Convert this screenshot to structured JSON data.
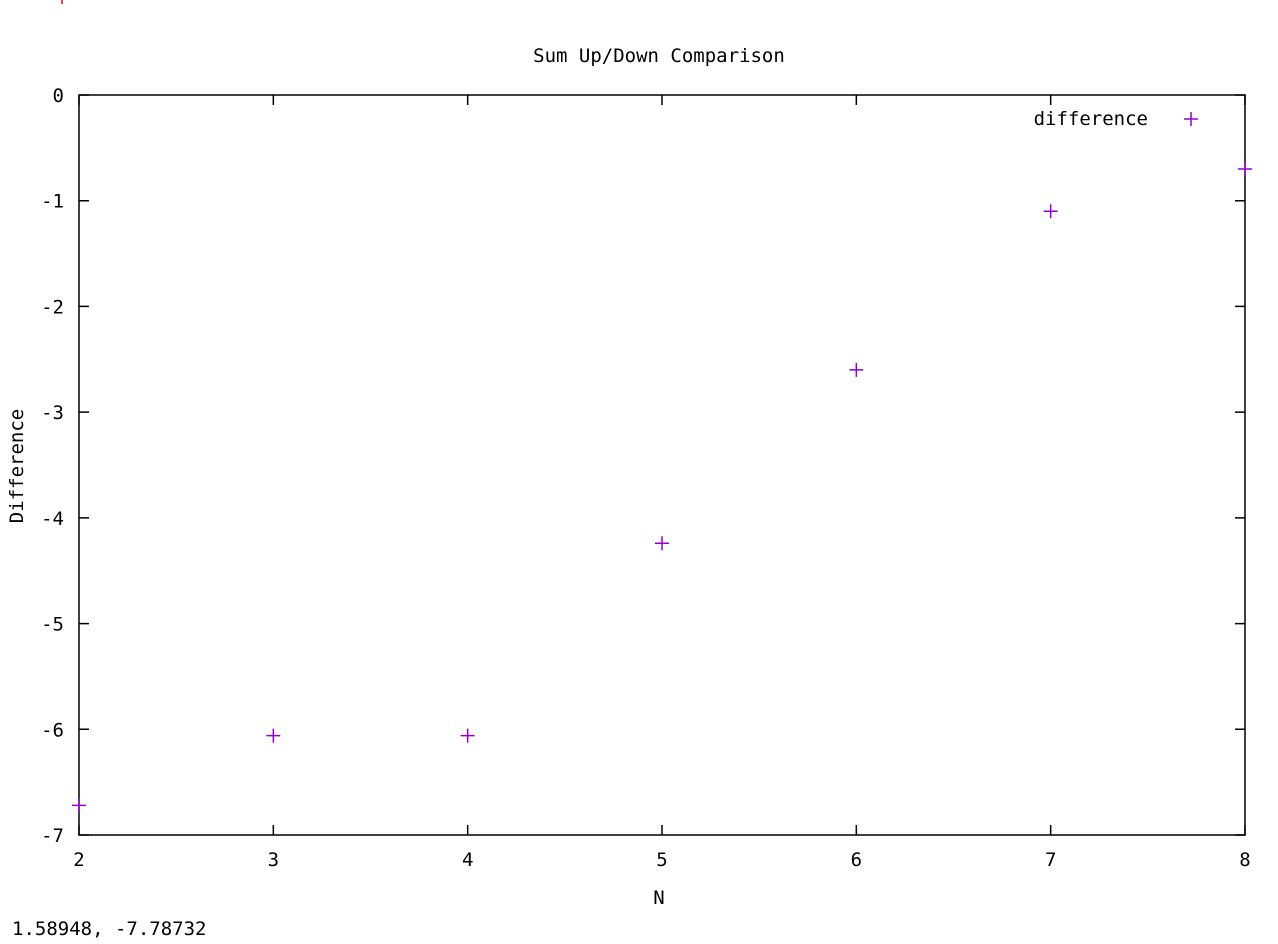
{
  "window": {
    "coordinate_readout": "1.58948, -7.78732"
  },
  "colors": {
    "series": "#9400d3",
    "axes": "#000000",
    "marker": "#ff0000"
  },
  "chart_data": {
    "type": "scatter",
    "title": "Sum Up/Down Comparison",
    "xlabel": "N",
    "ylabel": "Difference",
    "xlim": [
      2,
      8
    ],
    "ylim": [
      -7,
      0
    ],
    "x_ticks": [
      "2",
      "3",
      "4",
      "5",
      "6",
      "7",
      "8"
    ],
    "y_ticks": [
      "0",
      "-1",
      "-2",
      "-3",
      "-4",
      "-5",
      "-6",
      "-7"
    ],
    "grid": false,
    "legend_position": "top-right",
    "series": [
      {
        "name": "difference",
        "marker": "plus",
        "x": [
          2,
          3,
          4,
          5,
          6,
          7,
          8
        ],
        "y": [
          -6.72,
          -6.06,
          -6.06,
          -4.24,
          -2.6,
          -1.1,
          -0.7
        ]
      }
    ]
  }
}
